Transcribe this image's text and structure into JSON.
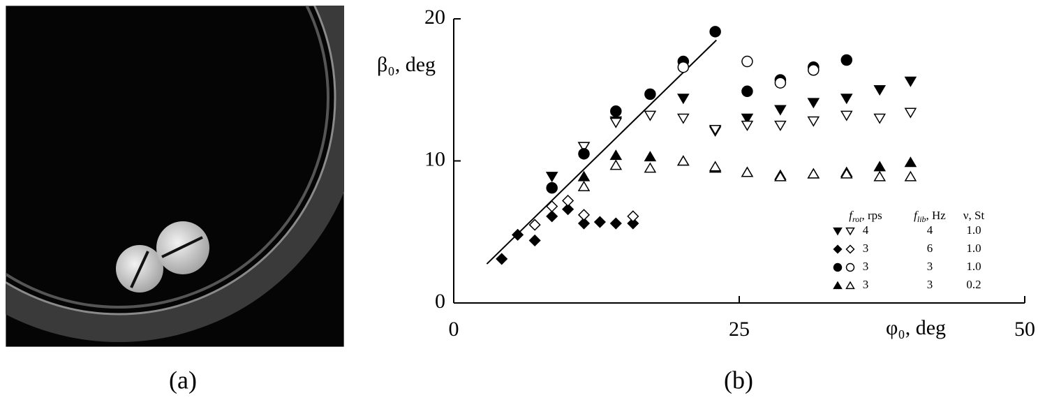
{
  "panel_labels": [
    "(a)",
    "(b)"
  ],
  "chart_data": {
    "type": "scatter",
    "x_label": "φ₀, deg",
    "y_label": "β₀, deg",
    "xlim": [
      0,
      50
    ],
    "xticks": [
      0,
      25,
      50
    ],
    "ylim": [
      0,
      20
    ],
    "yticks": [
      0,
      10,
      20
    ],
    "fit_line": {
      "x": [
        2.9,
        23.0
      ],
      "y": [
        2.75,
        18.5
      ],
      "color": "#000000"
    },
    "legend": {
      "columns": [
        {
          "symbol": "f",
          "sub": "rot",
          "unit": ", rps"
        },
        {
          "symbol": "f",
          "sub": "lib",
          "unit": ", Hz"
        },
        {
          "symbol": "ν",
          "unit": ", St"
        }
      ],
      "rows": [
        [
          "4",
          "4",
          "1.0"
        ],
        [
          "3",
          "6",
          "1.0"
        ],
        [
          "3",
          "3",
          "1.0"
        ],
        [
          "3",
          "3",
          "0.2"
        ]
      ]
    },
    "series": [
      {
        "marker": "triangle-down",
        "filled": true,
        "color": "#000000",
        "x": [
          8.6,
          11.4,
          14.2,
          20.1,
          22.9,
          25.7,
          28.6,
          31.5,
          34.4,
          37.3,
          40.0
        ],
        "values": [
          8.9,
          11.0,
          12.8,
          14.4,
          12.1,
          13.0,
          13.6,
          14.1,
          14.4,
          15.0,
          15.6
        ]
      },
      {
        "marker": "triangle-down",
        "filled": false,
        "color": "#000000",
        "x": [
          11.4,
          14.2,
          17.2,
          20.1,
          22.9,
          25.7,
          28.6,
          31.5,
          34.4,
          37.3,
          40.0
        ],
        "values": [
          11.0,
          12.7,
          13.2,
          13.0,
          12.2,
          12.5,
          12.5,
          12.8,
          13.2,
          13.0,
          13.4
        ]
      },
      {
        "marker": "diamond",
        "filled": true,
        "color": "#000000",
        "x": [
          4.2,
          5.6,
          7.1,
          8.6,
          10.0,
          11.4,
          12.8,
          14.2,
          15.7
        ],
        "values": [
          3.1,
          4.8,
          4.4,
          6.1,
          6.6,
          5.6,
          5.7,
          5.6,
          5.6
        ]
      },
      {
        "marker": "diamond",
        "filled": false,
        "color": "#000000",
        "x": [
          7.1,
          8.6,
          10.0,
          11.4,
          15.7
        ],
        "values": [
          5.5,
          6.8,
          7.2,
          6.2,
          6.1
        ]
      },
      {
        "marker": "circle",
        "filled": true,
        "color": "#000000",
        "x": [
          8.6,
          11.4,
          14.2,
          17.2,
          20.1,
          22.9,
          25.7,
          28.6,
          31.5,
          34.4
        ],
        "values": [
          8.1,
          10.5,
          13.5,
          14.7,
          17.0,
          19.1,
          14.9,
          15.7,
          16.6,
          17.1
        ]
      },
      {
        "marker": "circle",
        "filled": false,
        "color": "#000000",
        "x": [
          20.1,
          25.7,
          28.6,
          31.5
        ],
        "values": [
          16.6,
          17.0,
          15.5,
          16.4
        ]
      },
      {
        "marker": "triangle-up",
        "filled": true,
        "color": "#000000",
        "x": [
          11.4,
          14.2,
          17.2,
          20.1,
          22.9,
          25.7,
          28.6,
          31.5,
          34.4,
          37.3,
          40.0
        ],
        "values": [
          8.9,
          10.4,
          10.3,
          10.0,
          9.5,
          9.2,
          9.0,
          9.1,
          9.2,
          9.6,
          9.9
        ]
      },
      {
        "marker": "triangle-up",
        "filled": false,
        "color": "#000000",
        "x": [
          11.4,
          14.2,
          17.2,
          20.1,
          22.9,
          25.7,
          28.6,
          31.5,
          34.4,
          37.3,
          40.0
        ],
        "values": [
          8.2,
          9.7,
          9.5,
          10.0,
          9.6,
          9.2,
          8.9,
          9.1,
          9.1,
          8.9,
          8.9
        ]
      }
    ]
  }
}
